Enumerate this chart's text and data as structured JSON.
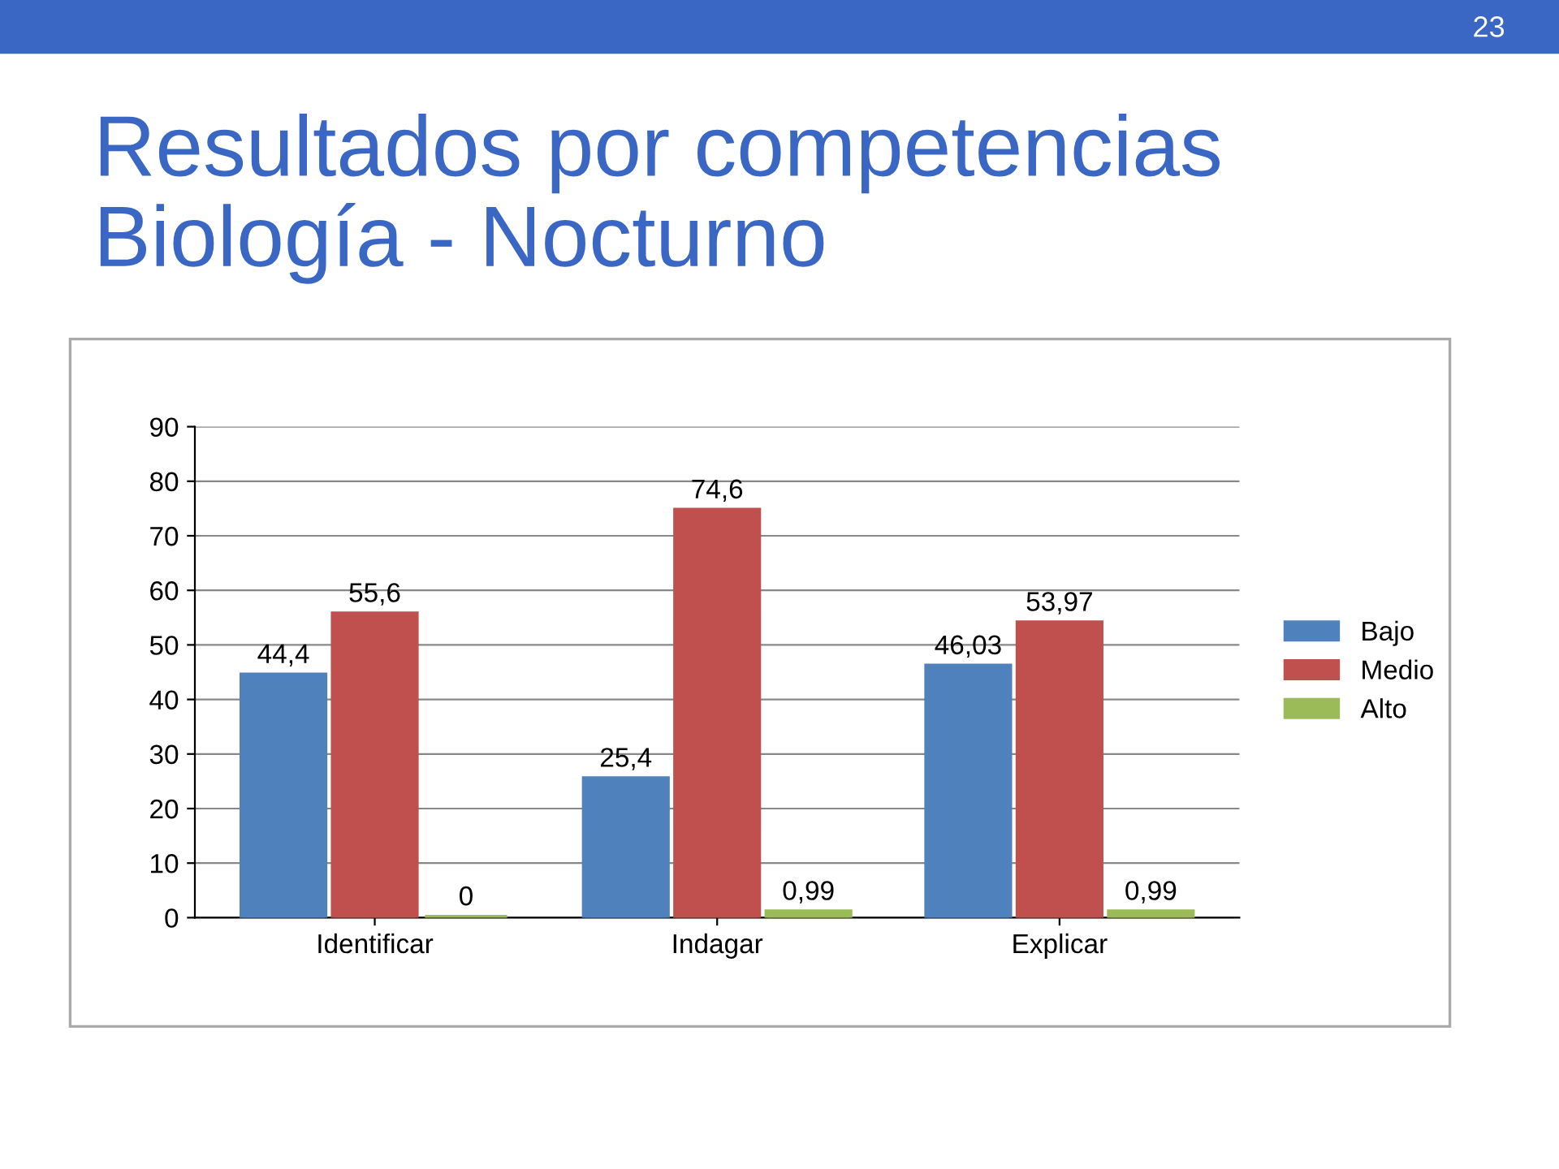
{
  "chart_data": {
    "type": "bar",
    "title": "Resultados por competencias\nBiología - Nocturno",
    "categories": [
      "Identificar",
      "Indagar",
      "Explicar"
    ],
    "series": [
      {
        "name": "Bajo",
        "color": "#4f81bd",
        "values": [
          44.4,
          25.4,
          46.03
        ],
        "value_labels": [
          "44,4",
          "25,4",
          "46,03"
        ]
      },
      {
        "name": "Medio",
        "color": "#c0504d",
        "values": [
          55.6,
          74.6,
          53.97
        ],
        "value_labels": [
          "55,6",
          "74,6",
          "53,97"
        ]
      },
      {
        "name": "Alto",
        "color": "#9bbb59",
        "values": [
          0,
          0.99,
          0.99
        ],
        "value_labels": [
          "0",
          "0,99",
          "0,99"
        ]
      }
    ],
    "ylim": [
      0,
      90
    ],
    "yticks": [
      0,
      10,
      20,
      30,
      40,
      50,
      60,
      70,
      80,
      90
    ],
    "grid": "y",
    "legend": "right",
    "annotations": [
      "23"
    ]
  }
}
